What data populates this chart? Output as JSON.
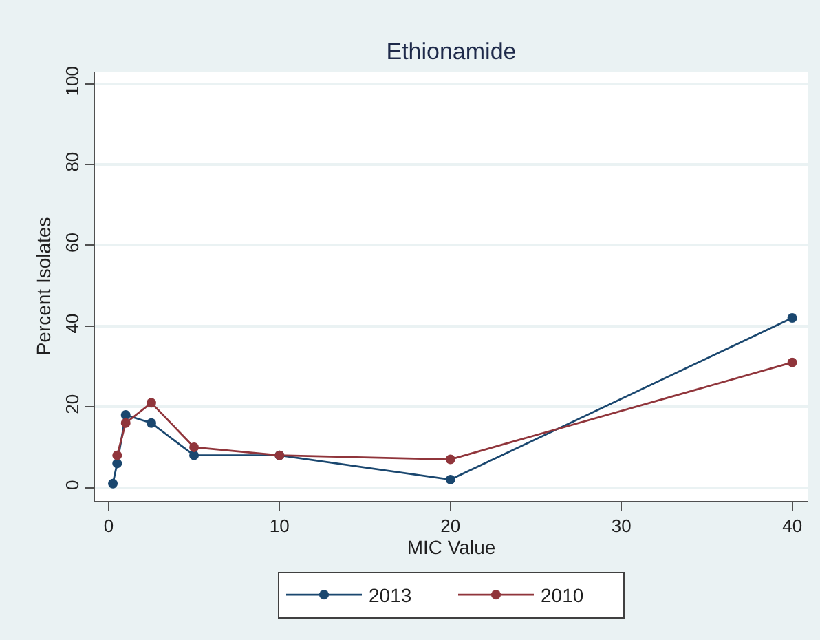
{
  "chart_data": {
    "type": "line",
    "title": "Ethionamide",
    "xlabel": "MIC Value",
    "ylabel": "Percent Isolates",
    "series": [
      {
        "name": "2013",
        "color": "#1a476f",
        "x": [
          0.25,
          0.5,
          1,
          2.5,
          5,
          10,
          20,
          40
        ],
        "values": [
          1,
          6,
          18,
          16,
          8,
          8,
          2,
          42
        ]
      },
      {
        "name": "2010",
        "color": "#90353b",
        "x": [
          0.5,
          1,
          2.5,
          5,
          10,
          20,
          40
        ],
        "values": [
          8,
          16,
          21,
          10,
          8,
          7,
          31
        ]
      }
    ],
    "xlim": [
      -0.8,
      40.9
    ],
    "ylim": [
      -3.3,
      103
    ],
    "xticks": [
      0,
      10,
      20,
      30,
      40
    ],
    "yticks": [
      0,
      20,
      40,
      60,
      80,
      100
    ],
    "grid": "y",
    "legend": "bottom",
    "marker": "circle",
    "line_style": "solid"
  }
}
